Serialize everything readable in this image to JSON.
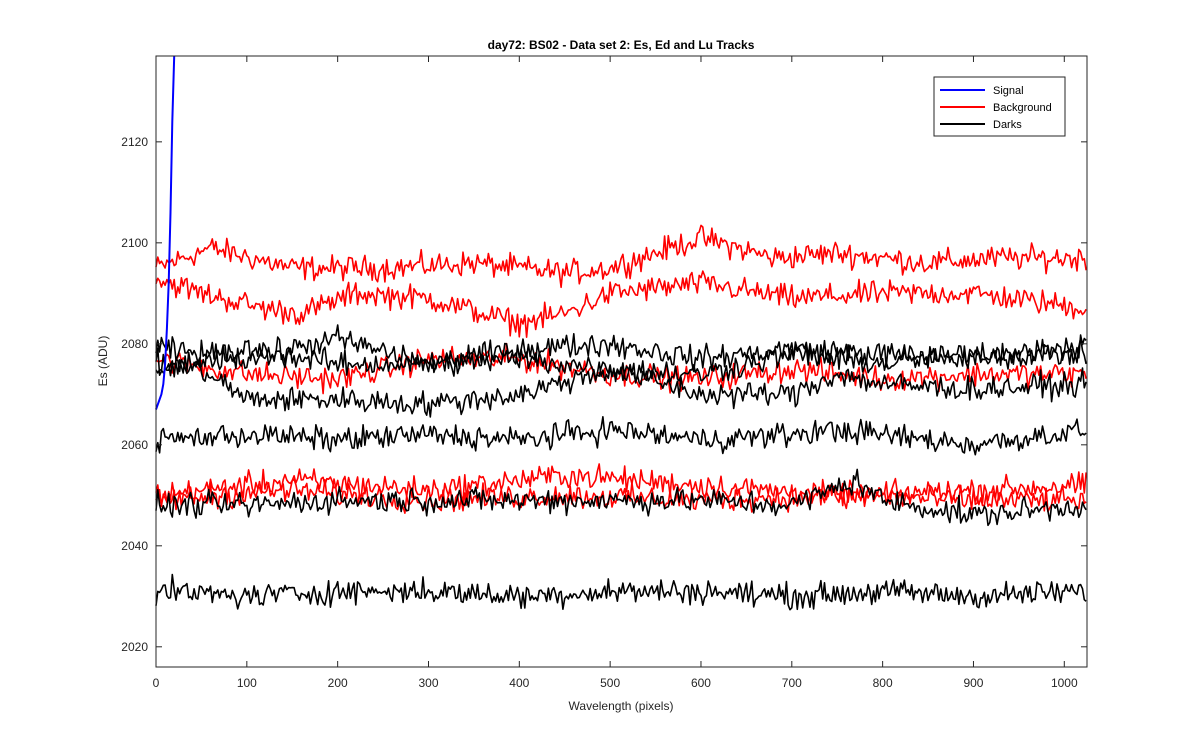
{
  "chart_data": {
    "type": "line",
    "title": "day72: BS02 - Data set 2: Es, Ed and Lu Tracks",
    "xlabel": "Wavelength (pixels)",
    "ylabel": "Es (ADU)",
    "xlim": [
      0,
      1025
    ],
    "ylim": [
      2016,
      2137
    ],
    "xticks": [
      0,
      100,
      200,
      300,
      400,
      500,
      600,
      700,
      800,
      900,
      1000
    ],
    "yticks": [
      2020,
      2040,
      2060,
      2080,
      2100,
      2120
    ],
    "legend_position": "top-right",
    "legend": [
      {
        "name": "Signal",
        "color": "#0000ff"
      },
      {
        "name": "Background",
        "color": "#ff0000"
      },
      {
        "name": "Darks",
        "color": "#000000"
      }
    ],
    "signal": {
      "name": "Signal",
      "color": "#0000ff",
      "x": [
        0,
        2,
        4,
        6,
        8,
        10,
        12,
        14,
        16,
        18,
        20
      ],
      "y": [
        2067,
        2068,
        2069,
        2070,
        2072,
        2076,
        2083,
        2092,
        2106,
        2124,
        2140
      ]
    },
    "series": [
      {
        "name": "Background",
        "color": "#ff0000",
        "x": [
          0,
          60,
          150,
          250,
          350,
          450,
          500,
          600,
          680,
          750,
          850,
          930,
          1025
        ],
        "y": [
          2095,
          2099,
          2095,
          2095,
          2096,
          2094,
          2095,
          2101,
          2097,
          2098,
          2096,
          2097,
          2097
        ]
      },
      {
        "name": "Background",
        "color": "#ff0000",
        "x": [
          0,
          50,
          120,
          160,
          220,
          300,
          400,
          450,
          500,
          600,
          700,
          800,
          900,
          1025
        ],
        "y": [
          2093,
          2090,
          2087,
          2086,
          2090,
          2089,
          2084,
          2086,
          2090,
          2092,
          2089,
          2090,
          2090,
          2087
        ]
      },
      {
        "name": "Background",
        "color": "#ff0000",
        "x": [
          0,
          100,
          200,
          300,
          400,
          500,
          600,
          700,
          800,
          900,
          1025
        ],
        "y": [
          2077,
          2074,
          2073,
          2077,
          2077,
          2074,
          2073,
          2075,
          2073,
          2074,
          2074
        ]
      },
      {
        "name": "Background",
        "color": "#ff0000",
        "x": [
          0,
          150,
          300,
          450,
          600,
          750,
          900,
          1025
        ],
        "y": [
          2050,
          2053,
          2051,
          2054,
          2052,
          2050,
          2051,
          2052
        ]
      },
      {
        "name": "Background",
        "color": "#ff0000",
        "x": [
          0,
          150,
          300,
          450,
          600,
          750,
          900,
          1025
        ],
        "y": [
          2049,
          2051,
          2049,
          2050,
          2049,
          2050,
          2049,
          2049
        ]
      },
      {
        "name": "Darks",
        "color": "#000000",
        "x": [
          0,
          100,
          200,
          300,
          400,
          500,
          600,
          700,
          800,
          900,
          1025
        ],
        "y": [
          2079,
          2077,
          2081,
          2076,
          2079,
          2080,
          2077,
          2079,
          2078,
          2077,
          2080
        ]
      },
      {
        "name": "Darks",
        "color": "#000000",
        "x": [
          0,
          100,
          200,
          300,
          400,
          500,
          600,
          700,
          800,
          900,
          1025
        ],
        "y": [
          2074,
          2079,
          2076,
          2076,
          2077,
          2075,
          2074,
          2078,
          2076,
          2078,
          2078
        ]
      },
      {
        "name": "Darks",
        "color": "#000000",
        "x": [
          0,
          50,
          100,
          200,
          300,
          400,
          500,
          600,
          700,
          750,
          800,
          900,
          1025
        ],
        "y": [
          2076,
          2075,
          2069,
          2069,
          2068,
          2070,
          2075,
          2070,
          2070,
          2074,
          2072,
          2071,
          2072
        ]
      },
      {
        "name": "Darks",
        "color": "#000000",
        "x": [
          0,
          100,
          200,
          300,
          400,
          500,
          600,
          700,
          750,
          800,
          900,
          1025
        ],
        "y": [
          2061,
          2062,
          2061,
          2062,
          2061,
          2063,
          2061,
          2062,
          2063,
          2062,
          2060,
          2063
        ]
      },
      {
        "name": "Darks",
        "color": "#000000",
        "x": [
          0,
          100,
          200,
          300,
          400,
          500,
          600,
          700,
          770,
          800,
          900,
          1025
        ],
        "y": [
          2048,
          2048,
          2049,
          2049,
          2049,
          2049,
          2049,
          2048,
          2053,
          2049,
          2046,
          2048
        ]
      },
      {
        "name": "Darks",
        "color": "#000000",
        "x": [
          0,
          100,
          200,
          300,
          400,
          500,
          600,
          700,
          800,
          900,
          1025
        ],
        "y": [
          2031,
          2030,
          2031,
          2031,
          2030,
          2031,
          2031,
          2030,
          2031,
          2030,
          2031
        ]
      }
    ]
  }
}
